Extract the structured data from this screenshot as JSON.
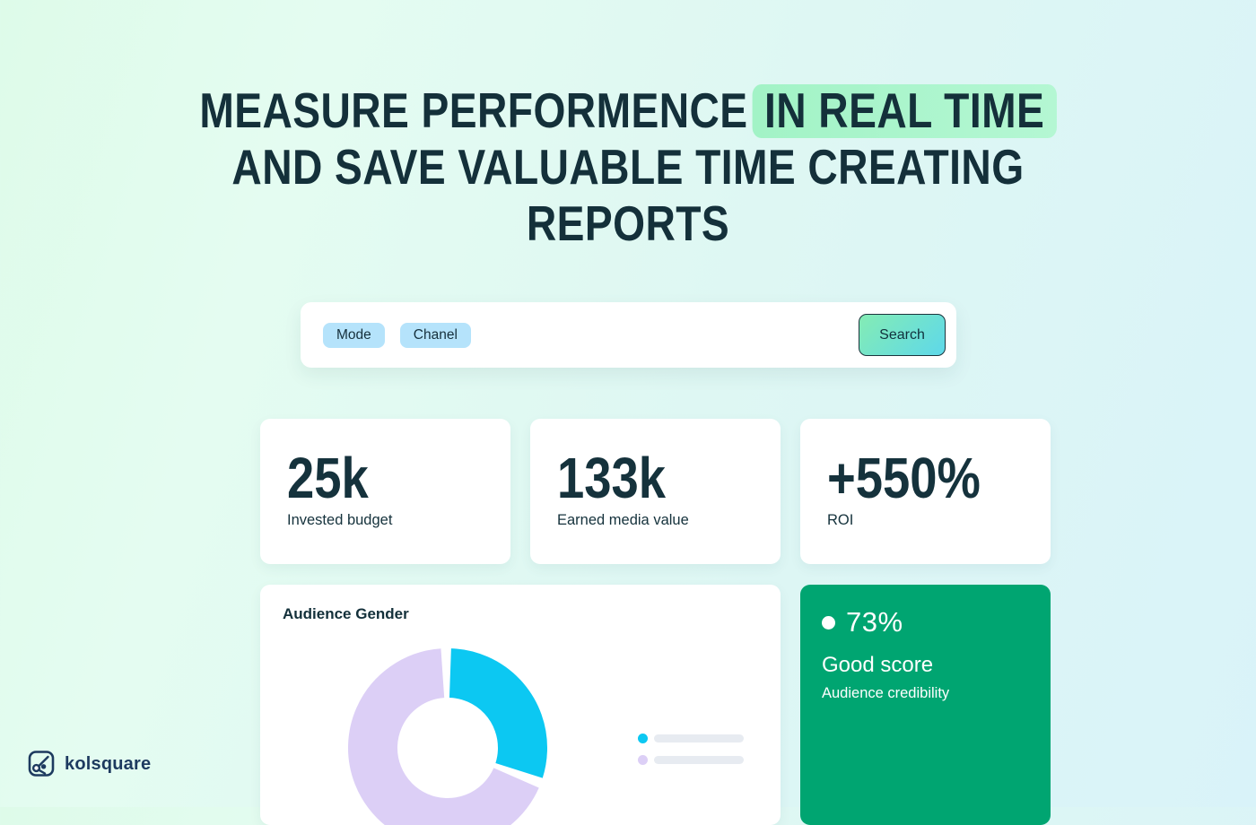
{
  "heading": {
    "line1_prefix": "MEASURE PERFORMENCE",
    "highlight": "IN REAL TIME",
    "line2": "AND SAVE VALUABLE TIME CREATING",
    "line3": "REPORTS"
  },
  "search": {
    "chips": [
      {
        "label": "Mode"
      },
      {
        "label": "Chanel"
      }
    ],
    "button_label": "Search"
  },
  "stats": [
    {
      "value": "25k",
      "label": "Invested budget"
    },
    {
      "value": "133k",
      "label": "Earned media value"
    },
    {
      "value": "+550%",
      "label": "ROI"
    }
  ],
  "audience_card": {
    "title": "Audience Gender"
  },
  "chart_data": {
    "type": "pie",
    "title": "Audience Gender",
    "donut": true,
    "legend_position": "right",
    "labels_shown": false,
    "segments": [
      {
        "name": "segment-cyan",
        "value": 31,
        "color": "#0cc8f2"
      },
      {
        "name": "segment-lavender",
        "value": 69,
        "color": "#dccff6"
      }
    ],
    "gap_degrees": 6,
    "start_degrees": 2
  },
  "score_card": {
    "value": "73%",
    "title": "Good score",
    "subtitle": "Audience credibility",
    "status_color": "#00a571"
  },
  "logo": {
    "text": "kolsquare"
  },
  "colors": {
    "highlight_bg": "#a9f4cc",
    "chip_bg": "#b5e3fb",
    "button_gradient_from": "#84ecb4",
    "button_gradient_to": "#5ed8ea",
    "green_card_bg": "#00a571",
    "text_dark": "#14303a",
    "legend_bar": "#e7ebf1"
  }
}
